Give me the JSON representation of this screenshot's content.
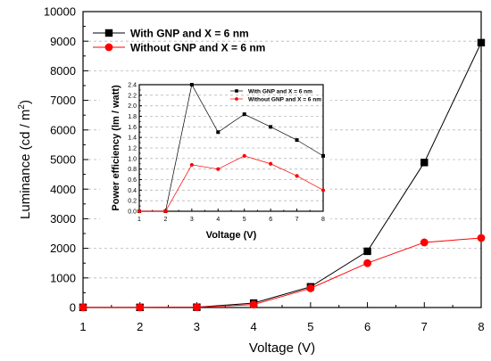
{
  "chart_data": [
    {
      "type": "line",
      "role": "main",
      "x": [
        1,
        2,
        3,
        4,
        5,
        6,
        7,
        8
      ],
      "xlabel": "Voltage (V)",
      "ylabel": "Luminance (cd / m",
      "ylabel_sup": "2",
      "ylabel_end": ")",
      "xlim": [
        1,
        8
      ],
      "ylim": [
        0,
        10000
      ],
      "xticks": [
        "1",
        "2",
        "3",
        "4",
        "5",
        "6",
        "7",
        "8"
      ],
      "yticks": [
        0,
        1000,
        2000,
        3000,
        4000,
        5000,
        6000,
        7000,
        8000,
        9000,
        10000
      ],
      "grid": "dashed horizontal",
      "legend_position": "top-left",
      "series": [
        {
          "name": "With GNP and X = 6 nm",
          "color": "#000000",
          "marker": "square",
          "values": [
            5,
            5,
            10,
            150,
            700,
            1900,
            4900,
            8950
          ]
        },
        {
          "name": "Without GNP and X = 6 nm",
          "color": "#ff0000",
          "marker": "circle",
          "values": [
            5,
            5,
            10,
            100,
            650,
            1500,
            2200,
            2350
          ]
        }
      ]
    },
    {
      "type": "line",
      "role": "inset",
      "x": [
        1,
        2,
        3,
        4,
        5,
        6,
        7,
        8
      ],
      "xlabel": "Voltage (V)",
      "ylabel": "Power efficiency (lm / watt)",
      "xlim": [
        1,
        8
      ],
      "ylim": [
        0,
        2.4
      ],
      "xticks": [
        "1",
        "2",
        "3",
        "4",
        "5",
        "6",
        "7",
        "8"
      ],
      "yticks": [
        "0.0",
        "0.2",
        "0.4",
        "0.6",
        "0.8",
        "1.0",
        "1.2",
        "1.4",
        "1.6",
        "1.8",
        "2.0",
        "2.2",
        "2.4"
      ],
      "grid": "dashed horizontal",
      "legend_position": "top-right",
      "series": [
        {
          "name": "With GNP and X = 6 nm",
          "color": "#000000",
          "marker": "square",
          "values": [
            0.0,
            0.0,
            2.4,
            1.5,
            1.84,
            1.6,
            1.35,
            1.05
          ]
        },
        {
          "name": "Without GNP and X = 6 nm",
          "color": "#ff0000",
          "marker": "circle",
          "values": [
            0.0,
            0.0,
            0.88,
            0.8,
            1.05,
            0.9,
            0.67,
            0.4
          ]
        }
      ]
    }
  ]
}
